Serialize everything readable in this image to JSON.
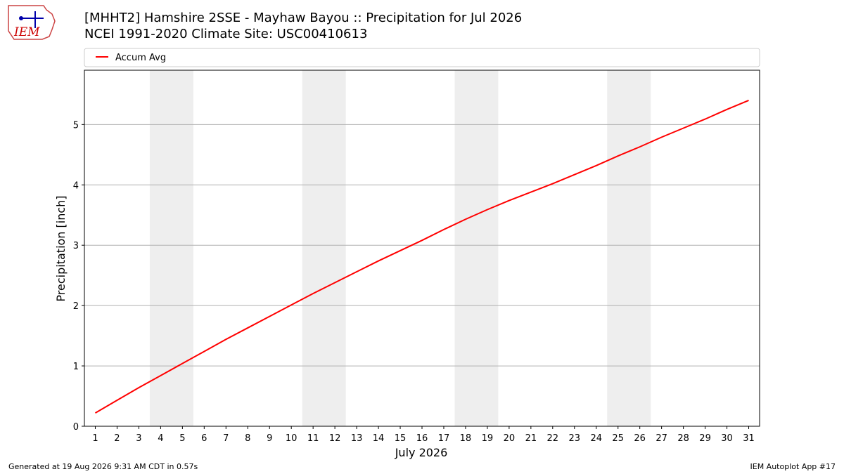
{
  "logo_text": "IEM",
  "footer_left": "Generated at 19 Aug 2026 9:31 AM CDT in 0.57s",
  "footer_right": "IEM Autoplot App #17",
  "chart_data": {
    "type": "line",
    "title": "[MHHT2] Hamshire 2SSE - Mayhaw Bayou :: Precipitation for Jul 2026",
    "subtitle": "NCEI 1991-2020 Climate Site: USC00410613",
    "x_label": "July 2026",
    "y_label": "Precipitation [inch]",
    "x": [
      1,
      2,
      3,
      4,
      5,
      6,
      7,
      8,
      9,
      10,
      11,
      12,
      13,
      14,
      15,
      16,
      17,
      18,
      19,
      20,
      21,
      22,
      23,
      24,
      25,
      26,
      27,
      28,
      29,
      30,
      31
    ],
    "series": [
      {
        "name": "Accum Avg",
        "color": "#ff0000",
        "values": [
          0.22,
          0.43,
          0.64,
          0.84,
          1.04,
          1.24,
          1.44,
          1.63,
          1.82,
          2.01,
          2.2,
          2.38,
          2.56,
          2.74,
          2.91,
          3.08,
          3.26,
          3.43,
          3.59,
          3.74,
          3.88,
          4.02,
          4.17,
          4.32,
          4.48,
          4.63,
          4.79,
          4.94,
          5.09,
          5.25,
          5.4
        ]
      }
    ],
    "shaded_days": [
      [
        4,
        5
      ],
      [
        11,
        12
      ],
      [
        18,
        19
      ],
      [
        25,
        26
      ]
    ],
    "shade_color": "#eeeeee",
    "xlim": [
      0.5,
      31.5
    ],
    "xticks": [
      1,
      2,
      3,
      4,
      5,
      6,
      7,
      8,
      9,
      10,
      11,
      12,
      13,
      14,
      15,
      16,
      17,
      18,
      19,
      20,
      21,
      22,
      23,
      24,
      25,
      26,
      27,
      28,
      29,
      30,
      31
    ],
    "ylim": [
      0,
      5.9
    ],
    "yticks": [
      0,
      1,
      2,
      3,
      4,
      5
    ],
    "grid": true,
    "legend": "top"
  }
}
